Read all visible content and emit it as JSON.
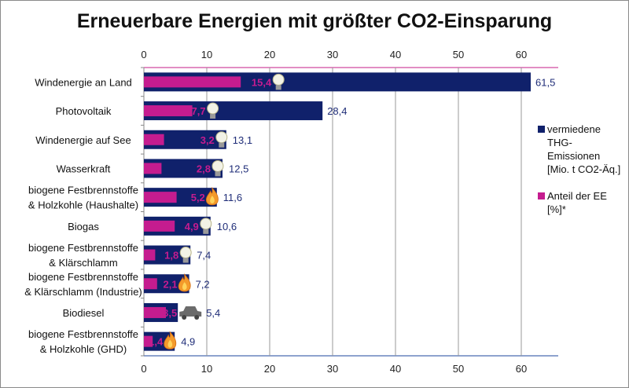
{
  "chart_data": {
    "type": "bar",
    "orientation": "horizontal",
    "title": "Erneuerbare Energien mit größter CO2-Einsparung",
    "categories": [
      [
        "Windenergie an Land"
      ],
      [
        "Photovoltaik"
      ],
      [
        "Windenergie auf See"
      ],
      [
        "Wasserkraft"
      ],
      [
        "biogene Festbrennstoffe",
        "& Holzkohle (Haushalte)"
      ],
      [
        "Biogas"
      ],
      [
        "biogene Festbrennstoffe",
        "& Klärschlamm"
      ],
      [
        "biogene Festbrennstoffe",
        "& Klärschlamm (Industrie)"
      ],
      [
        "Biodiesel"
      ],
      [
        "biogene Festbrennstoffe",
        "& Holzkohle (GHD)"
      ]
    ],
    "series": [
      {
        "name": "vermiedene THG-Emissionen [Mio. t CO2-Äq.]",
        "legend_lines": [
          "vermiedene",
          "THG-Emissionen",
          "[Mio. t CO2-Äq.]"
        ],
        "color": "#10216b",
        "values": [
          61.5,
          28.4,
          13.1,
          12.5,
          11.6,
          10.6,
          7.4,
          7.2,
          5.4,
          4.9
        ],
        "labels": [
          "61,5",
          "28,4",
          "13,1",
          "12,5",
          "11,6",
          "10,6",
          "7,4",
          "7,2",
          "5,4",
          "4,9"
        ]
      },
      {
        "name": "Anteil der EE [%]*",
        "legend_lines": [
          "Anteil der EE",
          "[%]*"
        ],
        "color": "#c51c8f",
        "values": [
          15.4,
          7.7,
          3.2,
          2.8,
          5.2,
          4.9,
          1.8,
          2.1,
          3.5,
          1.4
        ],
        "labels": [
          "15,4",
          "7,7",
          "3,2",
          "2,8",
          "5,2",
          "4,9",
          "1,8",
          "2,1",
          "3,5",
          "1,4"
        ]
      }
    ],
    "icons": [
      "bulb-icon",
      "bulb-icon",
      "bulb-icon",
      "bulb-icon",
      "fire-icon",
      "bulb-icon",
      "bulb-icon",
      "fire-icon",
      "car-icon",
      "fire-icon"
    ],
    "xlim": [
      0,
      62.5
    ],
    "xticks": [
      "0",
      "10",
      "20",
      "30",
      "40",
      "50",
      "60"
    ],
    "grid": true,
    "legend": "right"
  }
}
